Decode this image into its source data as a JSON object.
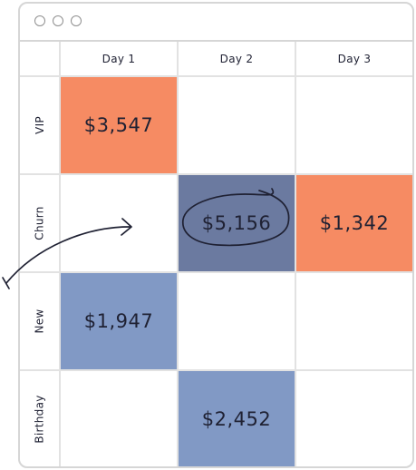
{
  "window": {
    "controls": [
      "window-dot-1",
      "window-dot-2",
      "window-dot-3"
    ]
  },
  "columns": [
    "Day 1",
    "Day 2",
    "Day 3"
  ],
  "rows": [
    "VIP",
    "Churn",
    "New",
    "Birthday"
  ],
  "cells": [
    [
      "$3,547",
      "",
      ""
    ],
    [
      "",
      "$5,156",
      "$1,342"
    ],
    [
      "$1,947",
      "",
      ""
    ],
    [
      "",
      "$2,452",
      ""
    ]
  ],
  "colors": {
    "orange": "#f68b63",
    "slate": "#6b7aa0",
    "blue": "#8199c5",
    "border": "#d6d6d6",
    "text": "#1f2133"
  },
  "cell_colors": [
    [
      "orange",
      "",
      ""
    ],
    [
      "",
      "slate",
      "orange"
    ],
    [
      "blue",
      "",
      ""
    ],
    [
      "",
      "blue",
      ""
    ]
  ],
  "annotations": {
    "circled_value": "$5,156",
    "arrow": "hand-drawn-arrow"
  }
}
